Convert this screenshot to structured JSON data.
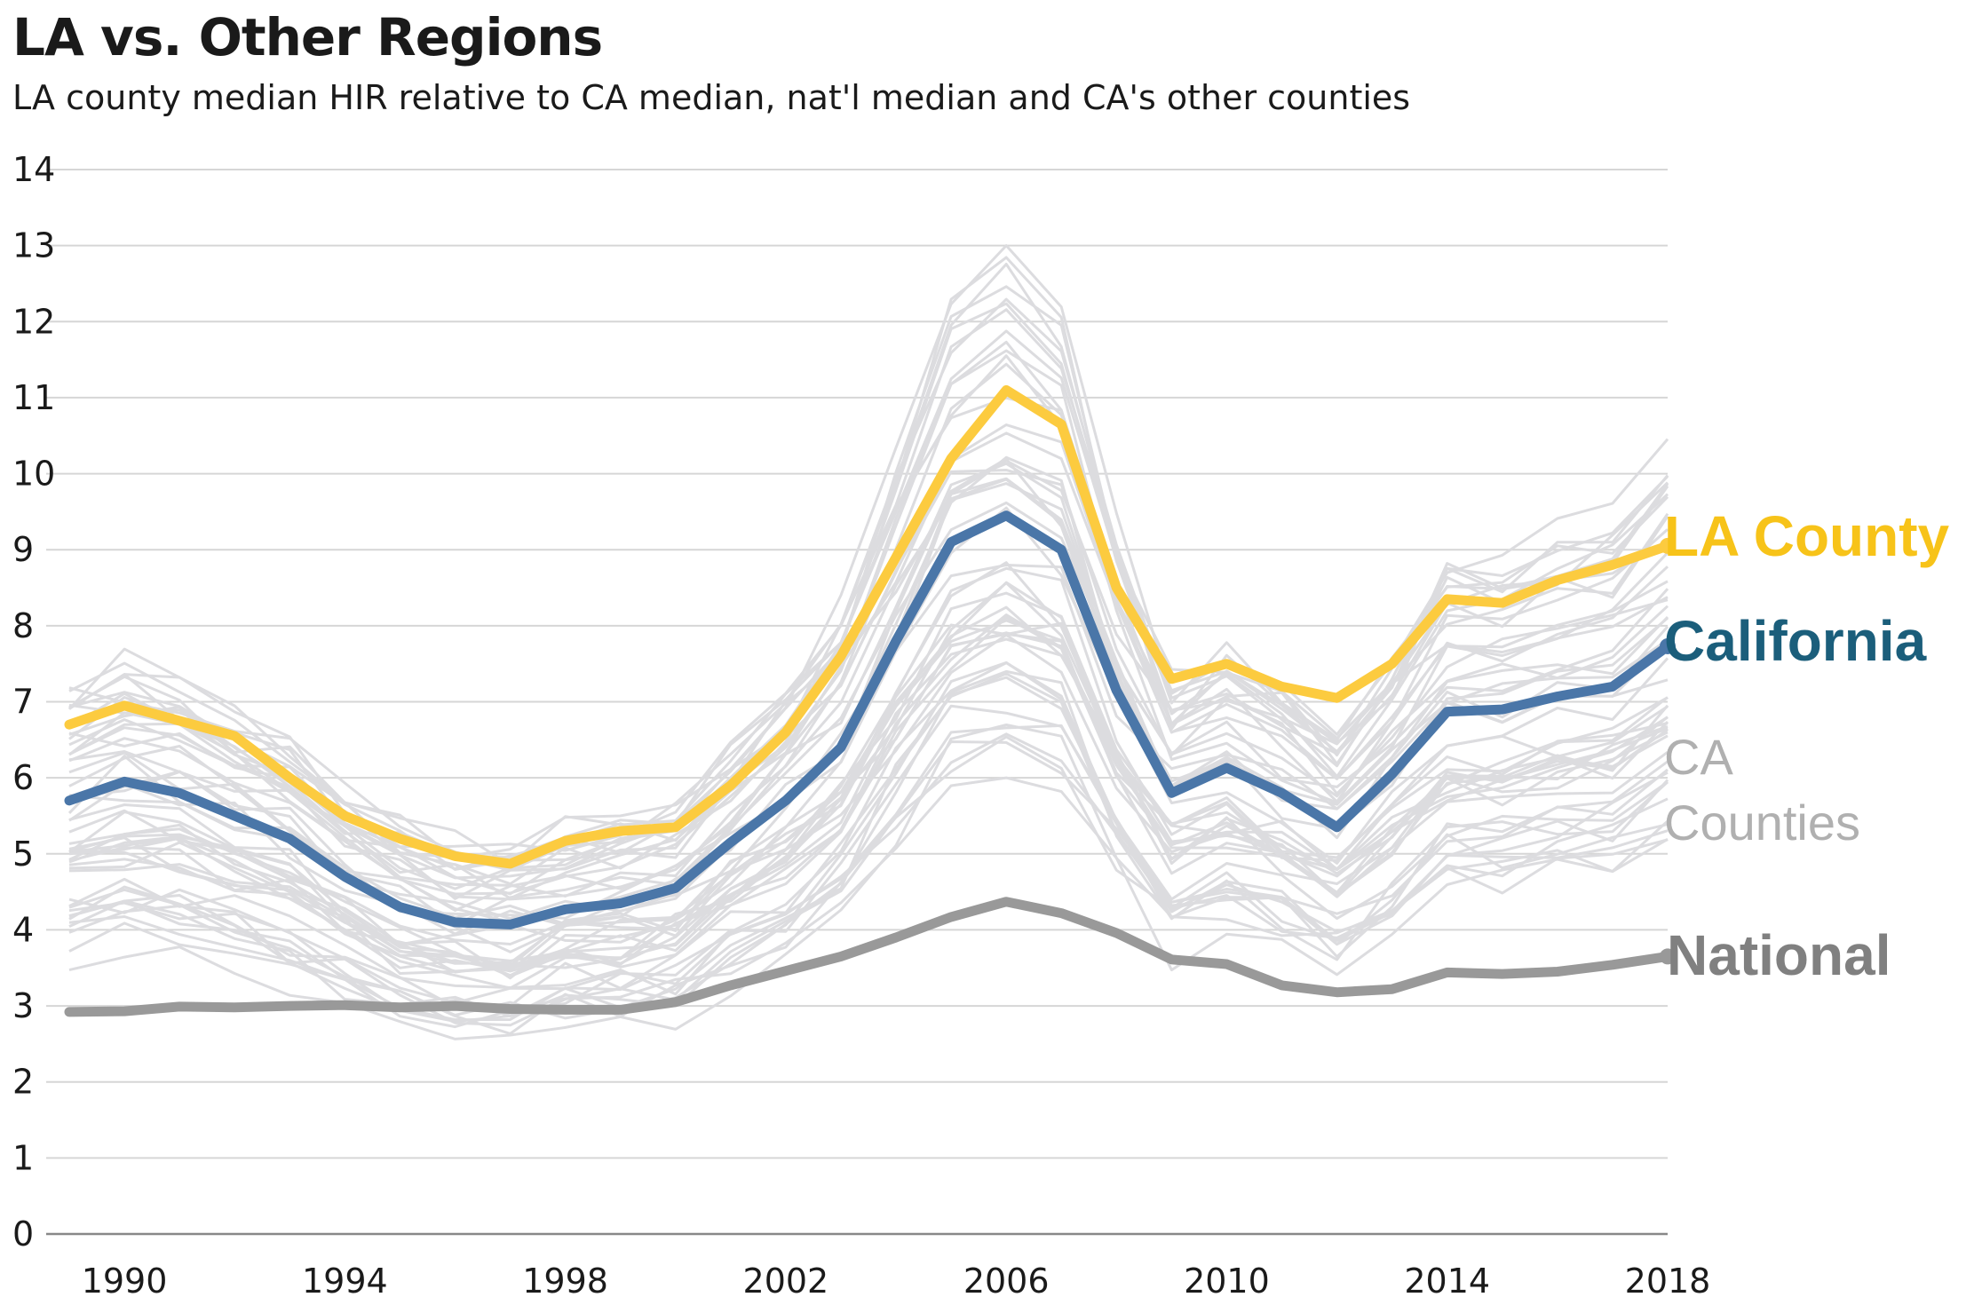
{
  "header": {
    "title": "LA vs. Other Regions",
    "subtitle": "LA county median HIR relative to CA median, nat'l median and CA's other counties"
  },
  "colors": {
    "la_county": "#fccb3f",
    "la_county_label": "#f7c319",
    "california": "#4a76a8",
    "california_label": "#1b5e7b",
    "national": "#999999",
    "national_label": "#808080",
    "counties": "#dcdcdf",
    "counties_label": "#b0b0b0",
    "grid": "#d6d6d6",
    "axis": "#888888"
  },
  "chart_data": {
    "type": "line",
    "x": [
      1989,
      1990,
      1991,
      1992,
      1993,
      1994,
      1995,
      1996,
      1997,
      1998,
      1999,
      2000,
      2001,
      2002,
      2003,
      2004,
      2005,
      2006,
      2007,
      2008,
      2009,
      2010,
      2011,
      2012,
      2013,
      2014,
      2015,
      2016,
      2017,
      2018
    ],
    "x_ticks": [
      1990,
      1994,
      1998,
      2002,
      2006,
      2010,
      2014,
      2018
    ],
    "y_ticks": [
      0,
      1,
      2,
      3,
      4,
      5,
      6,
      7,
      8,
      9,
      10,
      11,
      12,
      13,
      14
    ],
    "xlim": [
      1989,
      2018
    ],
    "ylim": [
      0,
      14
    ],
    "grid": true,
    "series": [
      {
        "name": "LA County",
        "key": "la_county",
        "values": [
          6.7,
          6.95,
          6.75,
          6.55,
          6.0,
          5.5,
          5.2,
          4.97,
          4.87,
          5.17,
          5.3,
          5.35,
          5.9,
          6.6,
          7.6,
          8.9,
          10.2,
          11.1,
          10.65,
          8.5,
          7.3,
          7.5,
          7.2,
          7.05,
          7.5,
          8.35,
          8.3,
          8.6,
          8.8,
          9.05
        ]
      },
      {
        "name": "California",
        "key": "california",
        "values": [
          5.7,
          5.95,
          5.8,
          5.5,
          5.2,
          4.7,
          4.3,
          4.1,
          4.07,
          4.27,
          4.35,
          4.55,
          5.15,
          5.7,
          6.4,
          7.8,
          9.1,
          9.45,
          9.0,
          7.15,
          5.8,
          6.13,
          5.8,
          5.35,
          6.05,
          6.87,
          6.9,
          7.07,
          7.2,
          7.73
        ]
      },
      {
        "name": "National",
        "key": "national",
        "values": [
          2.92,
          2.93,
          2.99,
          2.98,
          3.0,
          3.01,
          2.98,
          3.0,
          2.96,
          2.95,
          2.95,
          3.05,
          3.27,
          3.46,
          3.65,
          3.9,
          4.17,
          4.37,
          4.22,
          3.96,
          3.61,
          3.55,
          3.27,
          3.18,
          3.22,
          3.44,
          3.42,
          3.45,
          3.54,
          3.65
        ]
      }
    ],
    "counties_label_line1": "CA",
    "counties_label_line2": "Counties"
  }
}
